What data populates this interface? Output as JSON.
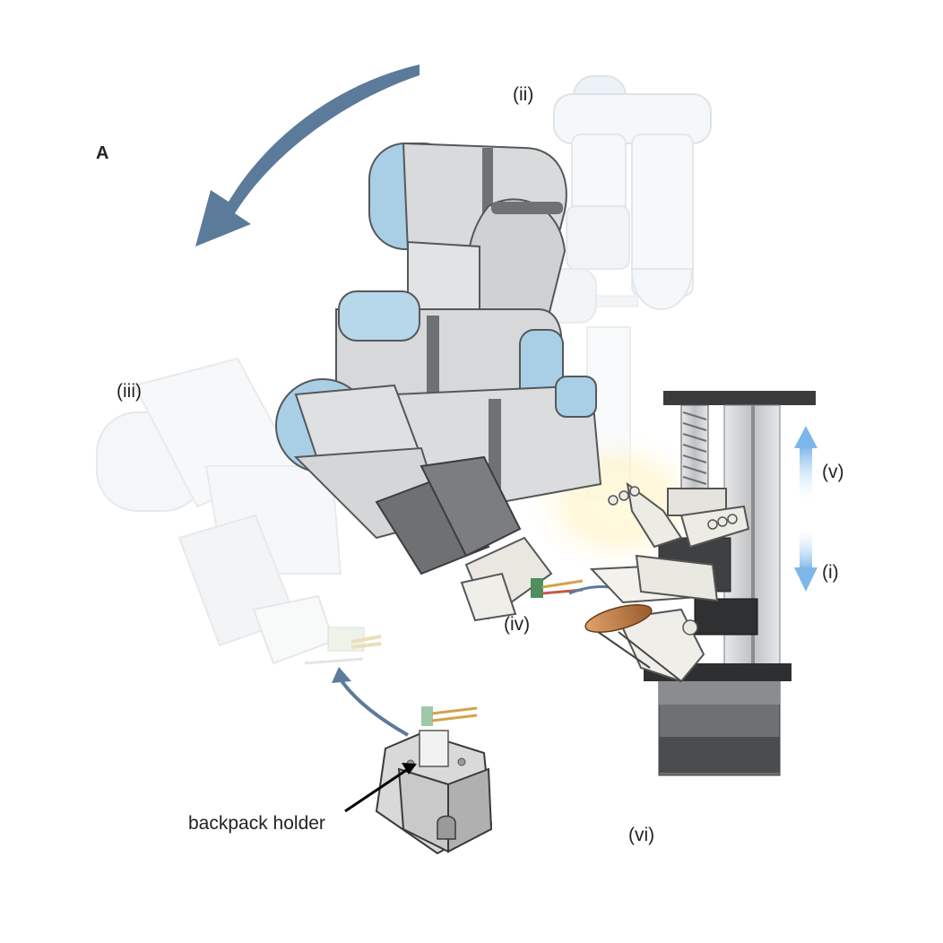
{
  "figure": {
    "panel_label": "A",
    "labels": {
      "i": "(i)",
      "ii": "(ii)",
      "iii": "(iii)",
      "iv": "(iv)",
      "v": "(v)",
      "vi": "(vi)",
      "backpack_holder": "backpack holder"
    },
    "colors": {
      "robot_body": "#d9dadb",
      "robot_joint_cap": "#a9cfe6",
      "robot_band": "#6f7173",
      "robot_wrist": "#6e7072",
      "ghost_robot": "#eef3f7",
      "big_arrow": "#5c7b9b",
      "motion_arrow": "#8fc3ee",
      "stage_frame": "#3a3b3d",
      "stage_column": "#c9cbcd",
      "insect": "#c4824a",
      "board_green": "#4f8f5f"
    }
  }
}
